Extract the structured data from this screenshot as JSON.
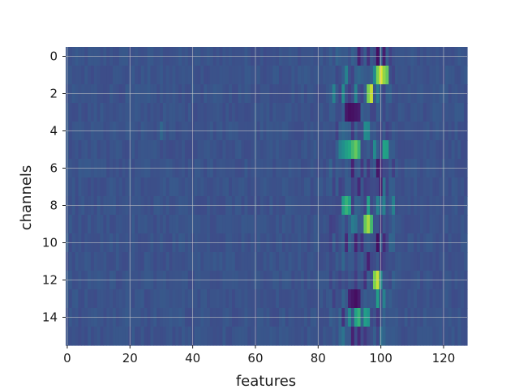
{
  "chart_data": {
    "type": "heatmap",
    "title": "",
    "xlabel": "features",
    "ylabel": "channels",
    "xlim": [
      -0.5,
      127.5
    ],
    "ylim": [
      15.5,
      -0.5
    ],
    "x_ticks": [
      0,
      20,
      40,
      60,
      80,
      100,
      120
    ],
    "y_ticks": [
      0,
      2,
      4,
      6,
      8,
      10,
      12,
      14
    ],
    "n_rows": 16,
    "n_cols": 128,
    "grid": true,
    "colormap": "viridis",
    "base_level": 0.32,
    "hotspots": [
      {
        "row": 0,
        "cols": [
          [
            93,
            0.12
          ],
          [
            96,
            0.18
          ],
          [
            99,
            0.05
          ],
          [
            101,
            0.1
          ],
          [
            86,
            0.4
          ]
        ]
      },
      {
        "row": 1,
        "cols": [
          [
            98,
            0.6
          ],
          [
            99,
            0.88
          ],
          [
            100,
            0.98
          ],
          [
            101,
            0.9
          ],
          [
            102,
            0.85
          ],
          [
            89,
            0.55
          ],
          [
            93,
            0.42
          ]
        ]
      },
      {
        "row": 2,
        "cols": [
          [
            96,
            0.88
          ],
          [
            97,
            0.95
          ],
          [
            85,
            0.55
          ],
          [
            88,
            0.6
          ],
          [
            92,
            0.55
          ],
          [
            99,
            0.52
          ]
        ]
      },
      {
        "row": 3,
        "cols": [
          [
            89,
            0.08
          ],
          [
            90,
            0.05
          ],
          [
            91,
            0.06
          ],
          [
            92,
            0.08
          ],
          [
            93,
            0.1
          ],
          [
            96,
            0.35
          ]
        ]
      },
      {
        "row": 4,
        "cols": [
          [
            95,
            0.6
          ],
          [
            96,
            0.58
          ],
          [
            91,
            0.2
          ],
          [
            88,
            0.42
          ],
          [
            30,
            0.42
          ]
        ]
      },
      {
        "row": 5,
        "cols": [
          [
            87,
            0.55
          ],
          [
            88,
            0.62
          ],
          [
            89,
            0.7
          ],
          [
            90,
            0.75
          ],
          [
            91,
            0.8
          ],
          [
            92,
            0.85
          ],
          [
            93,
            0.78
          ],
          [
            98,
            0.6
          ],
          [
            101,
            0.72
          ],
          [
            102,
            0.7
          ]
        ]
      },
      {
        "row": 6,
        "cols": [
          [
            91,
            0.12
          ],
          [
            94,
            0.2
          ],
          [
            96,
            0.2
          ],
          [
            99,
            0.08
          ],
          [
            100,
            0.18
          ]
        ]
      },
      {
        "row": 7,
        "cols": [
          [
            93,
            0.15
          ],
          [
            96,
            0.25
          ],
          [
            100,
            0.1
          ],
          [
            101,
            0.48
          ]
        ]
      },
      {
        "row": 8,
        "cols": [
          [
            88,
            0.7
          ],
          [
            89,
            0.78
          ],
          [
            90,
            0.72
          ],
          [
            96,
            0.72
          ],
          [
            99,
            0.55
          ],
          [
            101,
            0.55
          ],
          [
            104,
            0.55
          ]
        ]
      },
      {
        "row": 9,
        "cols": [
          [
            95,
            0.85
          ],
          [
            96,
            0.92
          ],
          [
            97,
            0.8
          ],
          [
            91,
            0.52
          ],
          [
            92,
            0.48
          ],
          [
            100,
            0.2
          ]
        ]
      },
      {
        "row": 10,
        "cols": [
          [
            89,
            0.15
          ],
          [
            92,
            0.12
          ],
          [
            94,
            0.18
          ],
          [
            99,
            0.05
          ],
          [
            101,
            0.15
          ]
        ]
      },
      {
        "row": 11,
        "cols": [
          [
            96,
            0.12
          ],
          [
            100,
            0.2
          ],
          [
            91,
            0.35
          ],
          [
            88,
            0.42
          ]
        ]
      },
      {
        "row": 12,
        "cols": [
          [
            98,
            0.88
          ],
          [
            99,
            0.95
          ],
          [
            100,
            0.6
          ],
          [
            92,
            0.22
          ],
          [
            95,
            0.18
          ]
        ]
      },
      {
        "row": 13,
        "cols": [
          [
            90,
            0.12
          ],
          [
            91,
            0.08
          ],
          [
            92,
            0.05
          ],
          [
            93,
            0.1
          ],
          [
            99,
            0.7
          ],
          [
            101,
            0.55
          ]
        ]
      },
      {
        "row": 14,
        "cols": [
          [
            90,
            0.6
          ],
          [
            92,
            0.72
          ],
          [
            93,
            0.78
          ],
          [
            95,
            0.7
          ],
          [
            96,
            0.65
          ],
          [
            88,
            0.18
          ],
          [
            99,
            0.2
          ]
        ]
      },
      {
        "row": 15,
        "cols": [
          [
            91,
            0.12
          ],
          [
            93,
            0.15
          ],
          [
            95,
            0.2
          ],
          [
            88,
            0.48
          ],
          [
            100,
            0.45
          ]
        ]
      }
    ]
  }
}
